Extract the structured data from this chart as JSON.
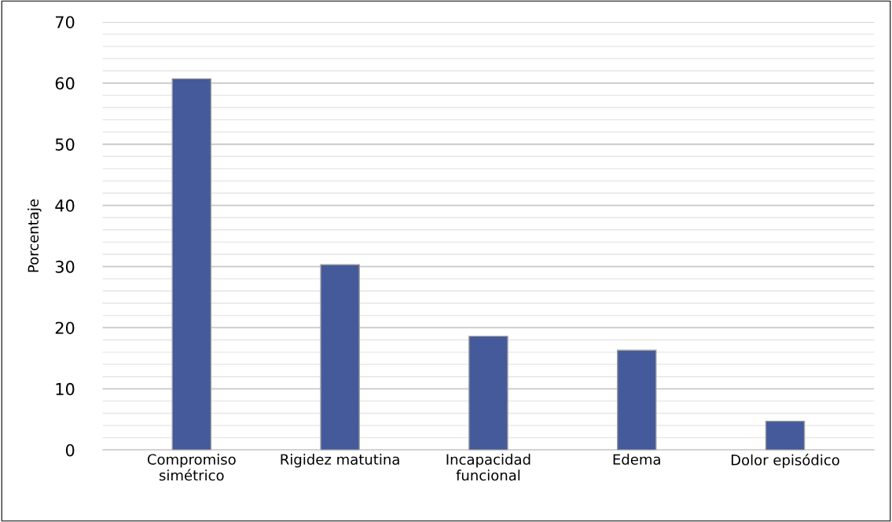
{
  "chart_data": {
    "type": "bar",
    "ylabel": "Porcentaje",
    "categories": [
      "Compromiso\nsimétrico",
      "Rigidez matutina",
      "Incapacidad\nfuncional",
      "Edema",
      "Dolor episódico"
    ],
    "values": [
      60.7,
      30.3,
      18.6,
      16.3,
      4.7
    ],
    "color": "#445a9b",
    "ylim": [
      0,
      70
    ],
    "yticks": [
      0,
      {
        "value": 2,
        "label": null
      },
      {
        "value": 4,
        "label": null
      },
      {
        "value": 6,
        "label": null
      },
      {
        "value": 8,
        "label": null
      },
      10,
      {
        "value": 12,
        "label": null
      },
      {
        "value": 14,
        "label": null
      },
      {
        "value": 16,
        "label": null
      },
      {
        "value": 18,
        "label": null
      },
      20,
      {
        "value": 22,
        "label": null
      },
      {
        "value": 24,
        "label": null
      },
      {
        "value": 26,
        "label": null
      },
      {
        "value": 28,
        "label": null
      },
      30,
      {
        "value": 32,
        "label": null
      },
      {
        "value": 34,
        "label": null
      },
      {
        "value": 36,
        "label": null
      },
      {
        "value": 38,
        "label": null
      },
      40,
      {
        "value": 42,
        "label": null
      },
      {
        "value": 44,
        "label": null
      },
      {
        "value": 46,
        "label": null
      },
      {
        "value": 48,
        "label": null
      },
      50,
      {
        "value": 52,
        "label": null
      },
      {
        "value": 54,
        "label": null
      },
      {
        "value": 56,
        "label": null
      },
      {
        "value": 58,
        "label": null
      },
      60,
      {
        "value": 62,
        "label": null
      },
      {
        "value": 64,
        "label": null
      },
      {
        "value": 66,
        "label": null
      },
      {
        "value": 68,
        "label": null
      },
      70
    ],
    "grid": "y",
    "legend": false
  }
}
